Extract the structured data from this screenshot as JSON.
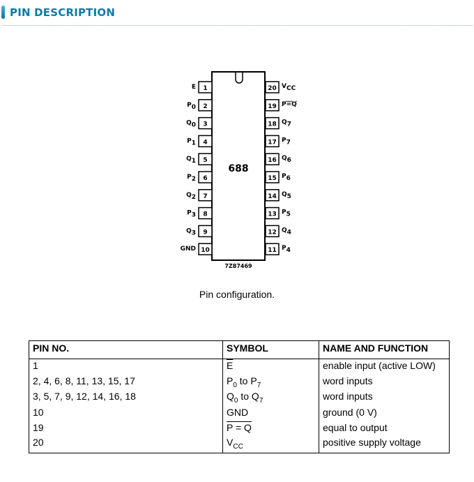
{
  "section": {
    "title": "PIN DESCRIPTION",
    "accent": "#1079a6"
  },
  "diagram": {
    "chip_label": "688",
    "code": "7Z87469",
    "caption": "Pin configuration.",
    "left_pins": [
      {
        "num": "1",
        "name": "E",
        "overline": true
      },
      {
        "num": "2",
        "name": "P",
        "sub": "0"
      },
      {
        "num": "3",
        "name": "Q",
        "sub": "0"
      },
      {
        "num": "4",
        "name": "P",
        "sub": "1"
      },
      {
        "num": "5",
        "name": "Q",
        "sub": "1"
      },
      {
        "num": "6",
        "name": "P",
        "sub": "2"
      },
      {
        "num": "7",
        "name": "Q",
        "sub": "2"
      },
      {
        "num": "8",
        "name": "P",
        "sub": "3"
      },
      {
        "num": "9",
        "name": "Q",
        "sub": "3"
      },
      {
        "num": "10",
        "name": "GND"
      }
    ],
    "right_pins": [
      {
        "num": "20",
        "name": "V",
        "sub": "CC"
      },
      {
        "num": "19",
        "name": "P=Q",
        "overline": true
      },
      {
        "num": "18",
        "name": "Q",
        "sub": "7"
      },
      {
        "num": "17",
        "name": "P",
        "sub": "7"
      },
      {
        "num": "16",
        "name": "Q",
        "sub": "6"
      },
      {
        "num": "15",
        "name": "P",
        "sub": "6"
      },
      {
        "num": "14",
        "name": "Q",
        "sub": "5"
      },
      {
        "num": "13",
        "name": "P",
        "sub": "5"
      },
      {
        "num": "12",
        "name": "Q",
        "sub": "4"
      },
      {
        "num": "11",
        "name": "P",
        "sub": "4"
      }
    ]
  },
  "table": {
    "headers": [
      "PIN NO.",
      "SYMBOL",
      "NAME AND FUNCTION"
    ],
    "rows": [
      {
        "pin": "1",
        "symbol": "E",
        "overline": true,
        "function": "enable input (active LOW)"
      },
      {
        "pin": "2, 4, 6, 8, 11, 13, 15, 17",
        "symbol": "P",
        "sub1": "0",
        "mid": " to P",
        "sub2": "7",
        "function": "word inputs"
      },
      {
        "pin": "3, 5, 7, 9, 12, 14, 16, 18",
        "symbol": "Q",
        "sub1": "0",
        "mid": " to Q",
        "sub2": "7",
        "function": "word inputs"
      },
      {
        "pin": "10",
        "symbol": "GND",
        "function": "ground (0 V)"
      },
      {
        "pin": "19",
        "symbol": "P = Q",
        "overline": true,
        "function": "equal to output"
      },
      {
        "pin": "20",
        "symbol": "V",
        "sub1": "CC",
        "function": "positive supply voltage"
      }
    ]
  }
}
